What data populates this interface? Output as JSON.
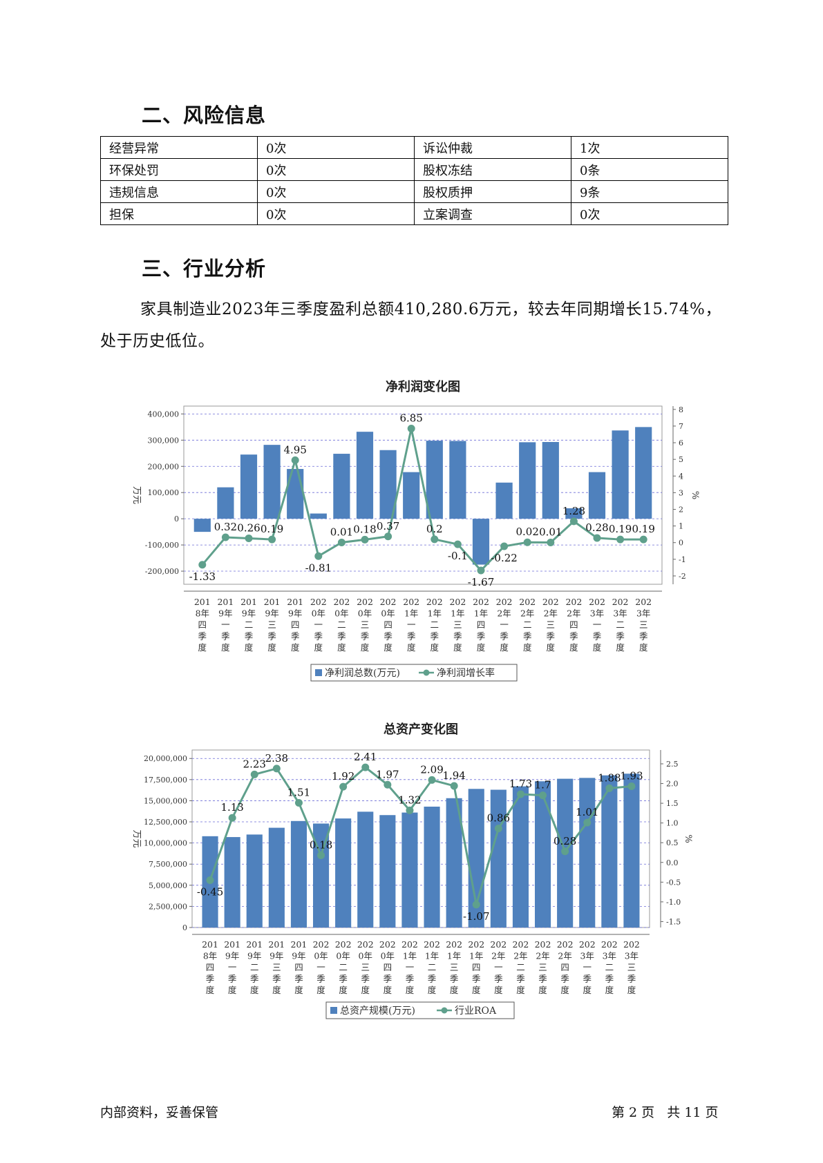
{
  "section2": {
    "title": "二、风险信息"
  },
  "risk_table": [
    [
      "经营异常",
      "0次",
      "诉讼仲裁",
      "1次"
    ],
    [
      "环保处罚",
      "0次",
      "股权冻结",
      "0条"
    ],
    [
      "违规信息",
      "0次",
      "股权质押",
      "9条"
    ],
    [
      "担保",
      "0次",
      "立案调查",
      "0次"
    ]
  ],
  "section3": {
    "title": "三、行业分析",
    "paragraph": "家具制造业2023年三季度盈利总额410,280.6万元，较去年同期增长15.74%，处于历史低位。"
  },
  "chart_data": [
    {
      "type": "bar",
      "title": "净利润变化图",
      "ylabel": "万元",
      "y2label": "%",
      "ylim": [
        -250000,
        430000
      ],
      "y2lim": [
        -2.5,
        8.2
      ],
      "yticks": [
        "400,000",
        "300,000",
        "200,000",
        "100,000",
        "0",
        "-100,000",
        "-200,000"
      ],
      "y2ticks": [
        "8",
        "7",
        "6",
        "5",
        "4",
        "3",
        "2",
        "1",
        "0",
        "-1",
        "-2"
      ],
      "categories": [
        "2018年四季度",
        "2019年一季度",
        "2019年二季度",
        "2019年三季度",
        "2019年四季度",
        "2020年一季度",
        "2020年二季度",
        "2020年三季度",
        "2020年四季度",
        "2021年一季度",
        "2021年二季度",
        "2021年三季度",
        "2021年四季度",
        "2022年一季度",
        "2022年二季度",
        "2022年三季度",
        "2022年四季度",
        "2023年一季度",
        "2023年二季度",
        "2023年三季度"
      ],
      "category_label_lines": [
        [
          "201",
          "8年",
          "四",
          "季",
          "度"
        ],
        [
          "201",
          "9年",
          "一",
          "季",
          "度"
        ],
        [
          "201",
          "9年",
          "二",
          "季",
          "度"
        ],
        [
          "201",
          "9年",
          "三",
          "季",
          "度"
        ],
        [
          "201",
          "9年",
          "四",
          "季",
          "度"
        ],
        [
          "202",
          "0年",
          "一",
          "季",
          "度"
        ],
        [
          "202",
          "0年",
          "二",
          "季",
          "度"
        ],
        [
          "202",
          "0年",
          "三",
          "季",
          "度"
        ],
        [
          "202",
          "0年",
          "四",
          "季",
          "度"
        ],
        [
          "202",
          "1年",
          "一",
          "季",
          "度"
        ],
        [
          "202",
          "1年",
          "二",
          "季",
          "度"
        ],
        [
          "202",
          "1年",
          "三",
          "季",
          "度"
        ],
        [
          "202",
          "1年",
          "四",
          "季",
          "度"
        ],
        [
          "202",
          "2年",
          "一",
          "季",
          "度"
        ],
        [
          "202",
          "2年",
          "二",
          "季",
          "度"
        ],
        [
          "202",
          "2年",
          "三",
          "季",
          "度"
        ],
        [
          "202",
          "2年",
          "四",
          "季",
          "度"
        ],
        [
          "202",
          "3年",
          "一",
          "季",
          "度"
        ],
        [
          "202",
          "3年",
          "二",
          "季",
          "度"
        ],
        [
          "202",
          "3年",
          "三",
          "季",
          "度"
        ]
      ],
      "series": [
        {
          "name": "净利润总数(万元)",
          "type": "bar",
          "color": "#4f81bd",
          "values": [
            -50000,
            120000,
            245000,
            282000,
            190000,
            20000,
            248000,
            332000,
            262000,
            178000,
            298000,
            297000,
            -175000,
            138000,
            292000,
            293000,
            40000,
            178000,
            337000,
            350000
          ]
        },
        {
          "name": "净利润增长率",
          "type": "line",
          "axis": "right",
          "color": "#5fa08c",
          "values": [
            -1.33,
            0.32,
            0.26,
            0.19,
            4.95,
            -0.81,
            0.01,
            0.18,
            0.37,
            6.85,
            0.2,
            -0.1,
            -1.67,
            -0.22,
            0.02,
            0.01,
            1.28,
            0.28,
            0.19,
            0.19
          ],
          "labels": [
            "-1.33",
            "0.32",
            "0.26",
            "0.19",
            "4.95",
            "-0.81",
            "0.01",
            "0.18",
            "0.37",
            "6.85",
            "0.2",
            "-0.1",
            "-1.67",
            "-0.22",
            "0.02",
            "0.01",
            "1.28",
            "0.28",
            "0.19",
            "0.19"
          ]
        }
      ]
    },
    {
      "type": "bar",
      "title": "总资产变化图",
      "ylabel": "万元",
      "y2label": "%",
      "ylim": [
        0,
        21000000
      ],
      "y2lim": [
        -1.65,
        2.85
      ],
      "yticks": [
        "20,000,000",
        "17,500,000",
        "15,000,000",
        "12,500,000",
        "10,000,000",
        "7,500,000",
        "5,000,000",
        "2,500,000",
        "0"
      ],
      "y2ticks": [
        "2.5",
        "2.0",
        "1.5",
        "1.0",
        "0.5",
        "0.0",
        "-0.5",
        "-1.0",
        "-1.5"
      ],
      "categories": [
        "2018年四季度",
        "2019年一季度",
        "2019年二季度",
        "2019年三季度",
        "2019年四季度",
        "2020年一季度",
        "2020年二季度",
        "2020年三季度",
        "2020年四季度",
        "2021年一季度",
        "2021年二季度",
        "2021年三季度",
        "2021年四季度",
        "2022年一季度",
        "2022年二季度",
        "2022年三季度",
        "2022年四季度",
        "2023年一季度",
        "2023年二季度",
        "2023年三季度"
      ],
      "category_label_lines": [
        [
          "201",
          "8年",
          "四",
          "季",
          "度"
        ],
        [
          "201",
          "9年",
          "一",
          "季",
          "度"
        ],
        [
          "201",
          "9年",
          "二",
          "季",
          "度"
        ],
        [
          "201",
          "9年",
          "三",
          "季",
          "度"
        ],
        [
          "201",
          "9年",
          "四",
          "季",
          "度"
        ],
        [
          "202",
          "0年",
          "一",
          "季",
          "度"
        ],
        [
          "202",
          "0年",
          "二",
          "季",
          "度"
        ],
        [
          "202",
          "0年",
          "三",
          "季",
          "度"
        ],
        [
          "202",
          "0年",
          "四",
          "季",
          "度"
        ],
        [
          "202",
          "1年",
          "一",
          "季",
          "度"
        ],
        [
          "202",
          "1年",
          "二",
          "季",
          "度"
        ],
        [
          "202",
          "1年",
          "三",
          "季",
          "度"
        ],
        [
          "202",
          "1年",
          "四",
          "季",
          "度"
        ],
        [
          "202",
          "2年",
          "一",
          "季",
          "度"
        ],
        [
          "202",
          "2年",
          "二",
          "季",
          "度"
        ],
        [
          "202",
          "2年",
          "三",
          "季",
          "度"
        ],
        [
          "202",
          "2年",
          "四",
          "季",
          "度"
        ],
        [
          "202",
          "3年",
          "一",
          "季",
          "度"
        ],
        [
          "202",
          "3年",
          "二",
          "季",
          "度"
        ],
        [
          "202",
          "3年",
          "三",
          "季",
          "度"
        ]
      ],
      "series": [
        {
          "name": "总资产规模(万元)",
          "type": "bar",
          "color": "#4f81bd",
          "values": [
            10800000,
            10700000,
            11000000,
            11800000,
            12600000,
            12300000,
            12900000,
            13700000,
            13300000,
            13600000,
            14300000,
            15300000,
            16400000,
            16300000,
            16700000,
            17300000,
            17600000,
            17700000,
            18000000,
            18200000
          ]
        },
        {
          "name": "行业ROA",
          "type": "line",
          "axis": "right",
          "color": "#5fa08c",
          "values": [
            -0.45,
            1.13,
            2.23,
            2.38,
            1.51,
            0.18,
            1.92,
            2.41,
            1.97,
            1.32,
            2.09,
            1.94,
            -1.07,
            0.86,
            1.73,
            1.7,
            0.28,
            1.01,
            1.88,
            1.93
          ],
          "labels": [
            "-0.45",
            "1.13",
            "2.23",
            "2.38",
            "1.51",
            "0.18",
            "1.92",
            "2.41",
            "1.97",
            "1.32",
            "2.09",
            "1.94",
            "-1.07",
            "0.86",
            "1.73",
            "1.7",
            "0.28",
            "1.01",
            "1.88",
            "1.93"
          ]
        }
      ]
    }
  ],
  "footer": {
    "left": "内部资料，妥善保管",
    "right": "第 2 页   共 11 页"
  }
}
